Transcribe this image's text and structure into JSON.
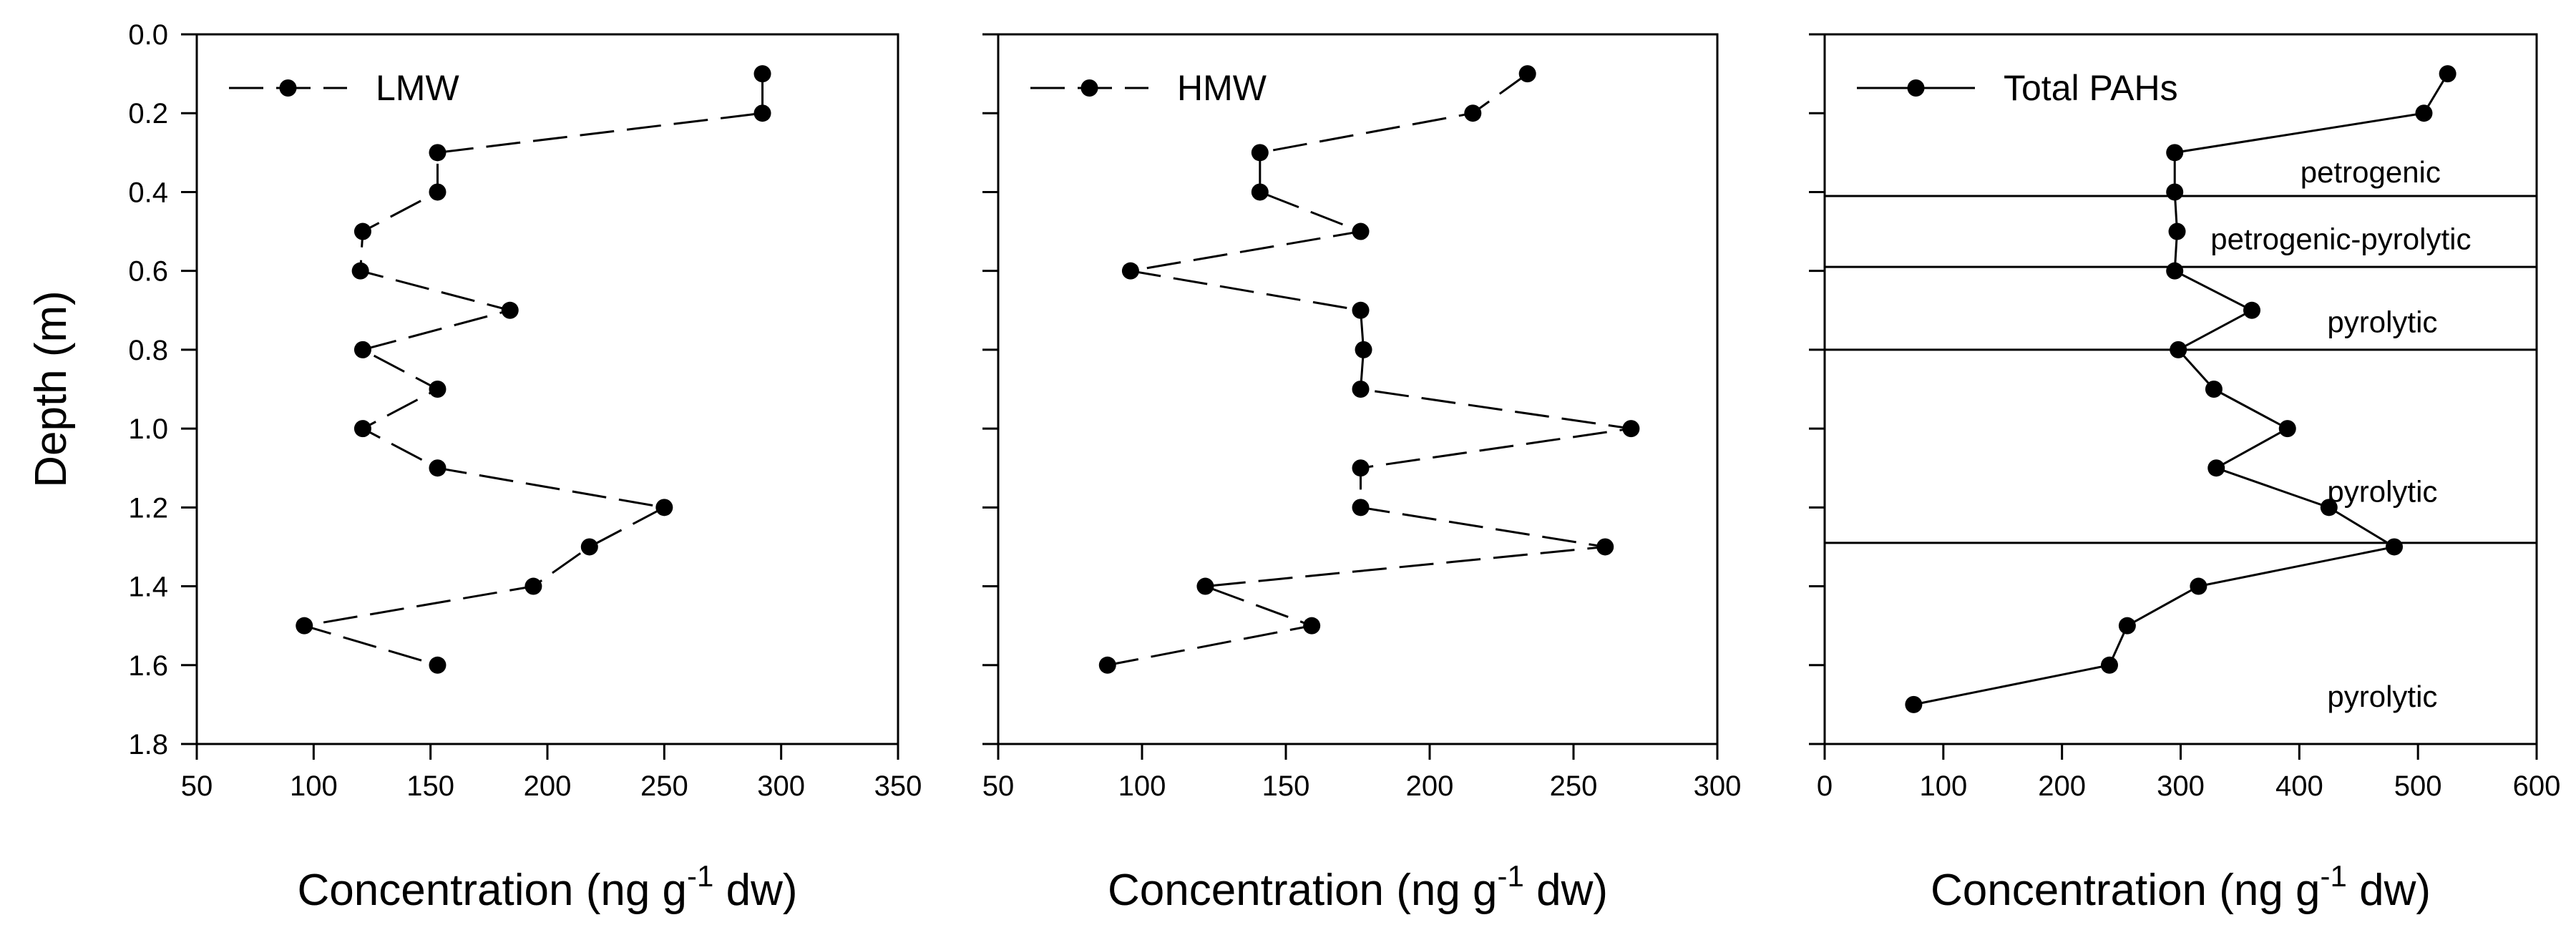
{
  "chart_data": [
    {
      "type": "line",
      "panel": "LMW",
      "legend": "LMW",
      "ylabel": "Depth (m)",
      "xlabel": "Concentration (ng g-1 dw)",
      "xlabel_parts": {
        "main": "Concentration (ng g",
        "sup": "-1",
        "tail": " dw)"
      },
      "xlim": [
        50,
        350
      ],
      "xticks": [
        50,
        100,
        150,
        200,
        250,
        300,
        350
      ],
      "ylim": [
        0.0,
        1.8
      ],
      "yticks": [
        "0.0",
        "0.2",
        "0.4",
        "0.6",
        "0.8",
        "1.0",
        "1.2",
        "1.4",
        "1.6",
        "1.8"
      ],
      "line_style": "dashed",
      "depth": [
        0.1,
        0.2,
        0.3,
        0.4,
        0.5,
        0.6,
        0.7,
        0.8,
        0.9,
        1.0,
        1.1,
        1.2,
        1.3,
        1.4,
        1.5,
        1.6
      ],
      "concentration": [
        292,
        292,
        153,
        153,
        121,
        120,
        184,
        121,
        153,
        121,
        153,
        250,
        218,
        194,
        96,
        153
      ]
    },
    {
      "type": "line",
      "panel": "HMW",
      "legend": "HMW",
      "xlabel": "Concentration (ng g-1 dw)",
      "xlabel_parts": {
        "main": "Concentration (ng g",
        "sup": "-1",
        "tail": " dw)"
      },
      "xlim": [
        50,
        300
      ],
      "xticks": [
        50,
        100,
        150,
        200,
        250,
        300
      ],
      "ylim": [
        0.0,
        1.8
      ],
      "line_style": "dashed",
      "depth": [
        0.1,
        0.2,
        0.3,
        0.4,
        0.5,
        0.6,
        0.7,
        0.8,
        0.9,
        1.0,
        1.1,
        1.2,
        1.3,
        1.4,
        1.5,
        1.6
      ],
      "concentration": [
        234,
        215,
        141,
        141,
        176,
        96,
        176,
        177,
        176,
        270,
        176,
        176,
        261,
        122,
        159,
        88
      ]
    },
    {
      "type": "line",
      "panel": "Total PAHs",
      "legend": "Total PAHs",
      "xlabel": "Concentration (ng g-1 dw)",
      "xlabel_parts": {
        "main": "Concentration (ng g",
        "sup": "-1",
        "tail": " dw)"
      },
      "xlim": [
        0,
        600
      ],
      "xticks": [
        0,
        100,
        200,
        300,
        400,
        500,
        600
      ],
      "ylim": [
        0.0,
        1.8
      ],
      "line_style": "solid",
      "depth": [
        0.1,
        0.2,
        0.3,
        0.4,
        0.5,
        0.6,
        0.7,
        0.8,
        0.9,
        1.0,
        1.1,
        1.2,
        1.3,
        1.4,
        1.5,
        1.6,
        1.7
      ],
      "concentration": [
        525,
        505,
        295,
        295,
        297,
        295,
        360,
        298,
        328,
        390,
        330,
        425,
        480,
        315,
        255,
        240,
        75
      ],
      "horizontal_lines_depth": [
        0.41,
        0.59,
        0.8,
        1.29
      ],
      "annotations": [
        {
          "text": "petrogenic",
          "depth": 0.35,
          "x": 460
        },
        {
          "text": "petrogenic-pyrolytic",
          "depth": 0.52,
          "x": 435
        },
        {
          "text": "pyrolytic",
          "depth": 0.73,
          "x": 470
        },
        {
          "text": "pyrolytic",
          "depth": 1.16,
          "x": 470
        },
        {
          "text": "pyrolytic",
          "depth": 1.68,
          "x": 470
        }
      ]
    }
  ]
}
